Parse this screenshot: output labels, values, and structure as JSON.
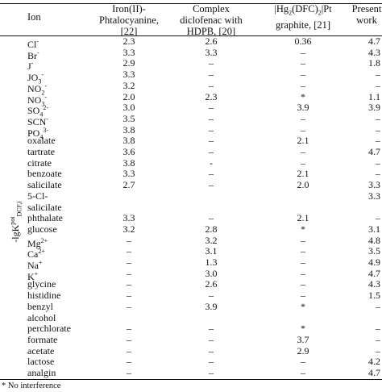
{
  "table": {
    "headers": {
      "ion": "Ion",
      "col1": [
        "Iron(II)-",
        "Phtalocyanine,",
        "[22]"
      ],
      "col2": [
        "Complex",
        "diclofenac with",
        "HDPB, [20]"
      ],
      "col3": [
        "|Hg2(DFC)2|Pt",
        "graphite, [21]"
      ],
      "col4": [
        "Present",
        "work"
      ]
    },
    "row_axis_label": "-lgK pot DCF,i",
    "rows": [
      {
        "ion": "Cl-",
        "v1": "2.3",
        "v2": "2.6",
        "v3": "0.36",
        "v4": "4.7"
      },
      {
        "ion": "Br-",
        "v1": "3.3",
        "v2": "3.3",
        "v3": "–",
        "v4": "4.3"
      },
      {
        "ion": "J-",
        "v1": "2.9",
        "v2": "–",
        "v3": "–",
        "v4": "1.8"
      },
      {
        "ion": "JO3-",
        "v1": "3.3",
        "v2": "–",
        "v3": "–",
        "v4": "–"
      },
      {
        "ion": "NO2-",
        "v1": "3.2",
        "v2": "–",
        "v3": "–",
        "v4": "–"
      },
      {
        "ion": "NO3-",
        "v1": "2.0",
        "v2": "2.3",
        "v3": "*",
        "v4": "1.1"
      },
      {
        "ion": "SO42-",
        "v1": "3.0",
        "v2": "–",
        "v3": "3.9",
        "v4": "3.9"
      },
      {
        "ion": "SCN-",
        "v1": "3.5",
        "v2": "–",
        "v3": "–",
        "v4": "–"
      },
      {
        "ion": "PO43-",
        "v1": "3.8",
        "v2": "–",
        "v3": "–",
        "v4": "–"
      },
      {
        "ion": "oxalate",
        "v1": "3.8",
        "v2": "–",
        "v3": "2.1",
        "v4": "–"
      },
      {
        "ion": "tartrate",
        "v1": "3.6",
        "v2": "–",
        "v3": "–",
        "v4": "4.7"
      },
      {
        "ion": "citrate",
        "v1": "3.8",
        "v2": "-",
        "v3": "–",
        "v4": "–"
      },
      {
        "ion": "benzoate",
        "v1": "3.3",
        "v2": "–",
        "v3": "2.1",
        "v4": "–"
      },
      {
        "ion": "salicilate",
        "v1": "2.7",
        "v2": "–",
        "v3": "2.0",
        "v4": "3.3"
      },
      {
        "ion": "5-Cl-",
        "v1": "",
        "v2": "",
        "v3": "",
        "v4": "3.3"
      },
      {
        "ion": "salicilate",
        "v1": "",
        "v2": "",
        "v3": "",
        "v4": ""
      },
      {
        "ion": "phthalate",
        "v1": "3.3",
        "v2": "–",
        "v3": "2.1",
        "v4": "–"
      },
      {
        "ion": "glucose",
        "v1": "3.2",
        "v2": "2.8",
        "v3": "*",
        "v4": "3.1"
      },
      {
        "ion": "Mg2+",
        "v1": "–",
        "v2": "3.2",
        "v3": "–",
        "v4": "4.8"
      },
      {
        "ion": "Ca2+",
        "v1": "–",
        "v2": "3.1",
        "v3": "–",
        "v4": "3.5"
      },
      {
        "ion": "Na+",
        "v1": "–",
        "v2": "1.3",
        "v3": "–",
        "v4": "4.9"
      },
      {
        "ion": "K+",
        "v1": "–",
        "v2": "3.0",
        "v3": "–",
        "v4": "4.7"
      },
      {
        "ion": "glycine",
        "v1": "–",
        "v2": "2.6",
        "v3": "–",
        "v4": "4.3"
      },
      {
        "ion": "histidine",
        "v1": "–",
        "v2": "–",
        "v3": "–",
        "v4": "1.5"
      },
      {
        "ion": "benzyl",
        "v1": "–",
        "v2": "3.9",
        "v3": "*",
        "v4": "–"
      },
      {
        "ion": "alcohol",
        "v1": "",
        "v2": "",
        "v3": "",
        "v4": ""
      },
      {
        "ion": "perchlorate",
        "v1": "–",
        "v2": "–",
        "v3": "*",
        "v4": "–"
      },
      {
        "ion": "formate",
        "v1": "–",
        "v2": "–",
        "v3": "3.7",
        "v4": "–"
      },
      {
        "ion": "acetate",
        "v1": "–",
        "v2": "–",
        "v3": "2.9",
        "v4": "–"
      },
      {
        "ion": "lactose",
        "v1": "–",
        "v2": "–",
        "v3": "–",
        "v4": "4.2"
      },
      {
        "ion": "analgin",
        "v1": "–",
        "v2": "–",
        "v3": "–",
        "v4": "4.7"
      }
    ],
    "footnote": "* No interference"
  }
}
